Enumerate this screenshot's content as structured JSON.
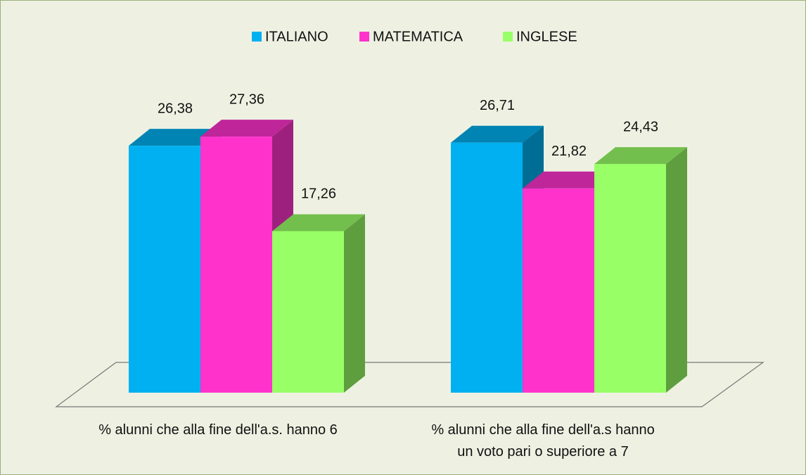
{
  "chart_data": {
    "type": "bar3d",
    "categories": [
      "% alunni che alla fine dell'a.s. hanno 6",
      "% alunni che alla fine dell'a.s hanno\nun voto pari o superiore a 7"
    ],
    "series": [
      {
        "name": "ITALIANO",
        "color": "#00b0f0",
        "values": [
          26.38,
          26.71
        ],
        "value_labels": [
          "26,38",
          "26,71"
        ]
      },
      {
        "name": "MATEMATICA",
        "color": "#ff33cc",
        "values": [
          27.36,
          21.82
        ],
        "value_labels": [
          "27,36",
          "21,82"
        ]
      },
      {
        "name": "INGLESE",
        "color": "#99ff66",
        "values": [
          17.26,
          24.43
        ],
        "value_labels": [
          "17,26",
          "24,43"
        ]
      }
    ],
    "ylim": [
      0,
      30
    ],
    "legend": "top"
  }
}
